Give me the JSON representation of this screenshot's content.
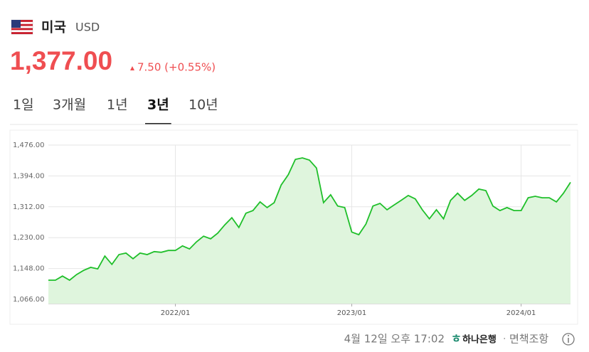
{
  "header": {
    "country": "미국",
    "currency": "USD",
    "price": "1,377.00",
    "change": "7.50 (+0.55%)"
  },
  "tabs": [
    "1일",
    "3개월",
    "1년",
    "3년",
    "10년"
  ],
  "active_tab": 3,
  "footer": {
    "time": "4월 12일 오후 17:02",
    "bank": "하나은행",
    "separator": "·",
    "disclaimer": "면책조항"
  },
  "chart_data": {
    "type": "area",
    "color": "#1fbf2a",
    "grid": true,
    "categories": [
      null,
      null,
      null,
      null,
      null,
      null,
      null,
      null,
      null,
      null,
      null,
      null,
      null,
      null,
      null,
      null,
      null,
      null,
      "2022/01",
      null,
      null,
      null,
      null,
      null,
      null,
      null,
      null,
      null,
      null,
      null,
      null,
      null,
      null,
      null,
      null,
      null,
      null,
      null,
      null,
      null,
      null,
      null,
      null,
      "2023/01",
      null,
      null,
      null,
      null,
      null,
      null,
      null,
      null,
      null,
      null,
      null,
      null,
      null,
      null,
      null,
      null,
      null,
      null,
      null,
      null,
      null,
      null,
      null,
      "2024/01",
      null,
      null,
      null,
      null,
      null,
      null,
      null
    ],
    "values": [
      1117,
      1117,
      1128,
      1117,
      1132,
      1143,
      1151,
      1147,
      1181,
      1159,
      1185,
      1189,
      1174,
      1189,
      1185,
      1193,
      1191,
      1196,
      1196,
      1208,
      1200,
      1219,
      1234,
      1227,
      1242,
      1264,
      1283,
      1257,
      1295,
      1302,
      1325,
      1310,
      1323,
      1370,
      1397,
      1438,
      1442,
      1436,
      1415,
      1323,
      1344,
      1314,
      1310,
      1245,
      1238,
      1266,
      1314,
      1321,
      1304,
      1317,
      1329,
      1342,
      1333,
      1304,
      1280,
      1304,
      1280,
      1329,
      1348,
      1329,
      1342,
      1359,
      1355,
      1314,
      1302,
      1310,
      1302,
      1302,
      1336,
      1340,
      1336,
      1336,
      1325,
      1348,
      1377
    ],
    "ylim": [
      1066,
      1476
    ],
    "yticks": [
      {
        "value": 1066,
        "label": "1,066.00"
      },
      {
        "value": 1148,
        "label": "1,148.00"
      },
      {
        "value": 1230,
        "label": "1,230.00"
      },
      {
        "value": 1312,
        "label": "1,312.00"
      },
      {
        "value": 1394,
        "label": "1,394.00"
      },
      {
        "value": 1476,
        "label": "1,476.00"
      }
    ]
  }
}
